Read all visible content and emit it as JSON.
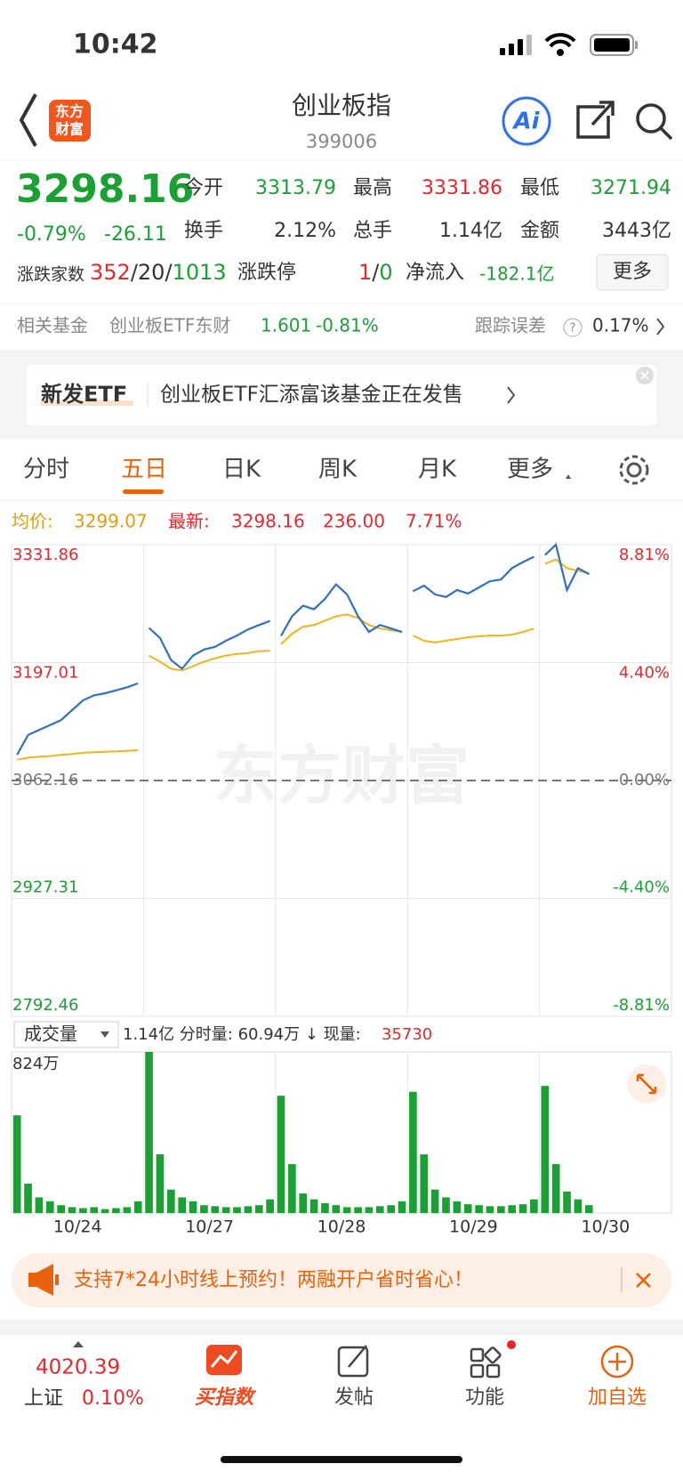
{
  "status_bar": {
    "time": "10:42"
  },
  "header": {
    "logo": [
      "东方",
      "财富"
    ],
    "title": "创业板指",
    "code": "399006",
    "ai": "Ai"
  },
  "quote": {
    "price": "3298.16",
    "change_pct": "-0.79%",
    "change": "-26.11",
    "fields": [
      {
        "label": "今开",
        "value": "3313.79"
      },
      {
        "label": "最高",
        "value": "3331.86"
      },
      {
        "label": "最低",
        "value": "3271.94"
      },
      {
        "label": "换手",
        "value": "2.12%"
      },
      {
        "label": "总手",
        "value": "1.14亿"
      },
      {
        "label": "金额",
        "value": "3443亿"
      }
    ],
    "breadth": {
      "label": "涨跌家数",
      "parts": [
        "352",
        "/",
        "20",
        "/",
        "1013"
      ]
    },
    "limit": {
      "label": "涨跌停",
      "parts": [
        "1",
        "/",
        "0"
      ]
    },
    "net_inflow": {
      "label": "净流入",
      "value": "-182.1亿"
    },
    "more": "更多"
  },
  "fund": {
    "label": "相关基金",
    "name": "创业板ETF东财",
    "price": "1.601",
    "change": "-0.81%",
    "tracking_label": "跟踪误差",
    "tracking_help": "?",
    "tracking_value": "0.17%"
  },
  "banner": {
    "tag": "新发ETF",
    "text": "创业板ETF汇添富该基金正在发售"
  },
  "tabs": [
    "分时",
    "五日",
    "日K",
    "周K",
    "月K",
    "更多"
  ],
  "active_tab": 1,
  "info": {
    "avg_label": "均价:",
    "avg": "3299.07",
    "last_label": "最新:",
    "last": "3298.16",
    "volume": "236.00",
    "pct": "7.71%"
  },
  "watermark": "东方财富",
  "chart": {
    "type": "line",
    "categories": [
      "10/24",
      "10/27",
      "10/28",
      "10/29",
      "10/30"
    ],
    "ylim": [
      2792.46,
      3331.86
    ],
    "yticks": [
      3331.86,
      3197.01,
      3062.16,
      2927.31,
      2792.46
    ],
    "y2lim": [
      -8.81,
      8.81
    ],
    "y2ticks": [
      {
        "value": 8.81,
        "label": "8.81%"
      },
      {
        "value": 4.4,
        "label": "4.40%"
      },
      {
        "value": 0,
        "label": "0.00%"
      },
      {
        "value": -4.4,
        "label": "-4.40%"
      },
      {
        "value": -8.81,
        "label": "-8.81%"
      }
    ],
    "up_color": "#e8262b",
    "down_color": "#1aa033",
    "price": {
      "color": "#2f6fc4",
      "values": [
        [
          3091.6,
          3114.3,
          3119.9,
          3125.6,
          3131.3,
          3142.6,
          3153.9,
          3159.6,
          3161.9,
          3165.3,
          3168.7,
          3173.2
        ],
        [
          3236.7,
          3225,
          3200,
          3190,
          3205,
          3212,
          3215,
          3222,
          3228,
          3235,
          3240,
          3244.6
        ],
        [
          3227.6,
          3250,
          3262,
          3258,
          3270,
          3286.5,
          3275,
          3250,
          3232,
          3240,
          3236,
          3232
        ],
        [
          3278.6,
          3285,
          3275,
          3272,
          3280,
          3276,
          3283,
          3290,
          3292,
          3305,
          3312,
          3318
        ],
        [
          3320,
          3331.86,
          3280,
          3305,
          3298.16
        ]
      ]
    },
    "average": {
      "color": "#f5b31c",
      "values": [
        [
          3085.9,
          3088.2,
          3089.4,
          3090,
          3091.6,
          3092.5,
          3093.9,
          3094.5,
          3095,
          3095.5,
          3096.2,
          3096.8
        ],
        [
          3204.9,
          3198,
          3190,
          3188,
          3193,
          3198,
          3202,
          3205,
          3207,
          3208,
          3210,
          3210.6
        ],
        [
          3218,
          3230,
          3238,
          3240,
          3245,
          3250,
          3252,
          3248,
          3240,
          3236,
          3234,
          3232
        ],
        [
          3228,
          3222,
          3220,
          3222,
          3224,
          3226,
          3227,
          3228,
          3228,
          3229,
          3232,
          3236
        ],
        [
          3310,
          3315,
          3305,
          3302,
          3299.07
        ]
      ]
    }
  },
  "volume": {
    "selector": "成交量",
    "summary": "1.14亿 分时量: 60.94万 ↓ 现量:",
    "current": "35730",
    "ylim": [
      0,
      824
    ],
    "yticks": [
      {
        "value": 824,
        "label": "824万"
      }
    ],
    "color": "#1aa033",
    "values": [
      [
        500,
        150,
        80,
        60,
        40,
        30,
        25,
        30,
        20,
        25,
        30,
        60
      ],
      [
        824,
        300,
        120,
        80,
        60,
        40,
        35,
        30,
        30,
        35,
        40,
        70
      ],
      [
        600,
        250,
        100,
        70,
        50,
        40,
        30,
        30,
        30,
        35,
        40,
        60
      ],
      [
        620,
        300,
        120,
        80,
        60,
        45,
        40,
        35,
        35,
        40,
        45,
        70
      ],
      [
        650,
        250,
        110,
        70,
        40
      ]
    ]
  },
  "ad": {
    "text": "支持7*24小时线上预约！两融开户省时省心！"
  },
  "nav": {
    "index": {
      "value": "4020.39",
      "name": "上证",
      "change": "0.10%"
    },
    "items": [
      "买指数",
      "发帖",
      "功能",
      "加自选"
    ]
  }
}
